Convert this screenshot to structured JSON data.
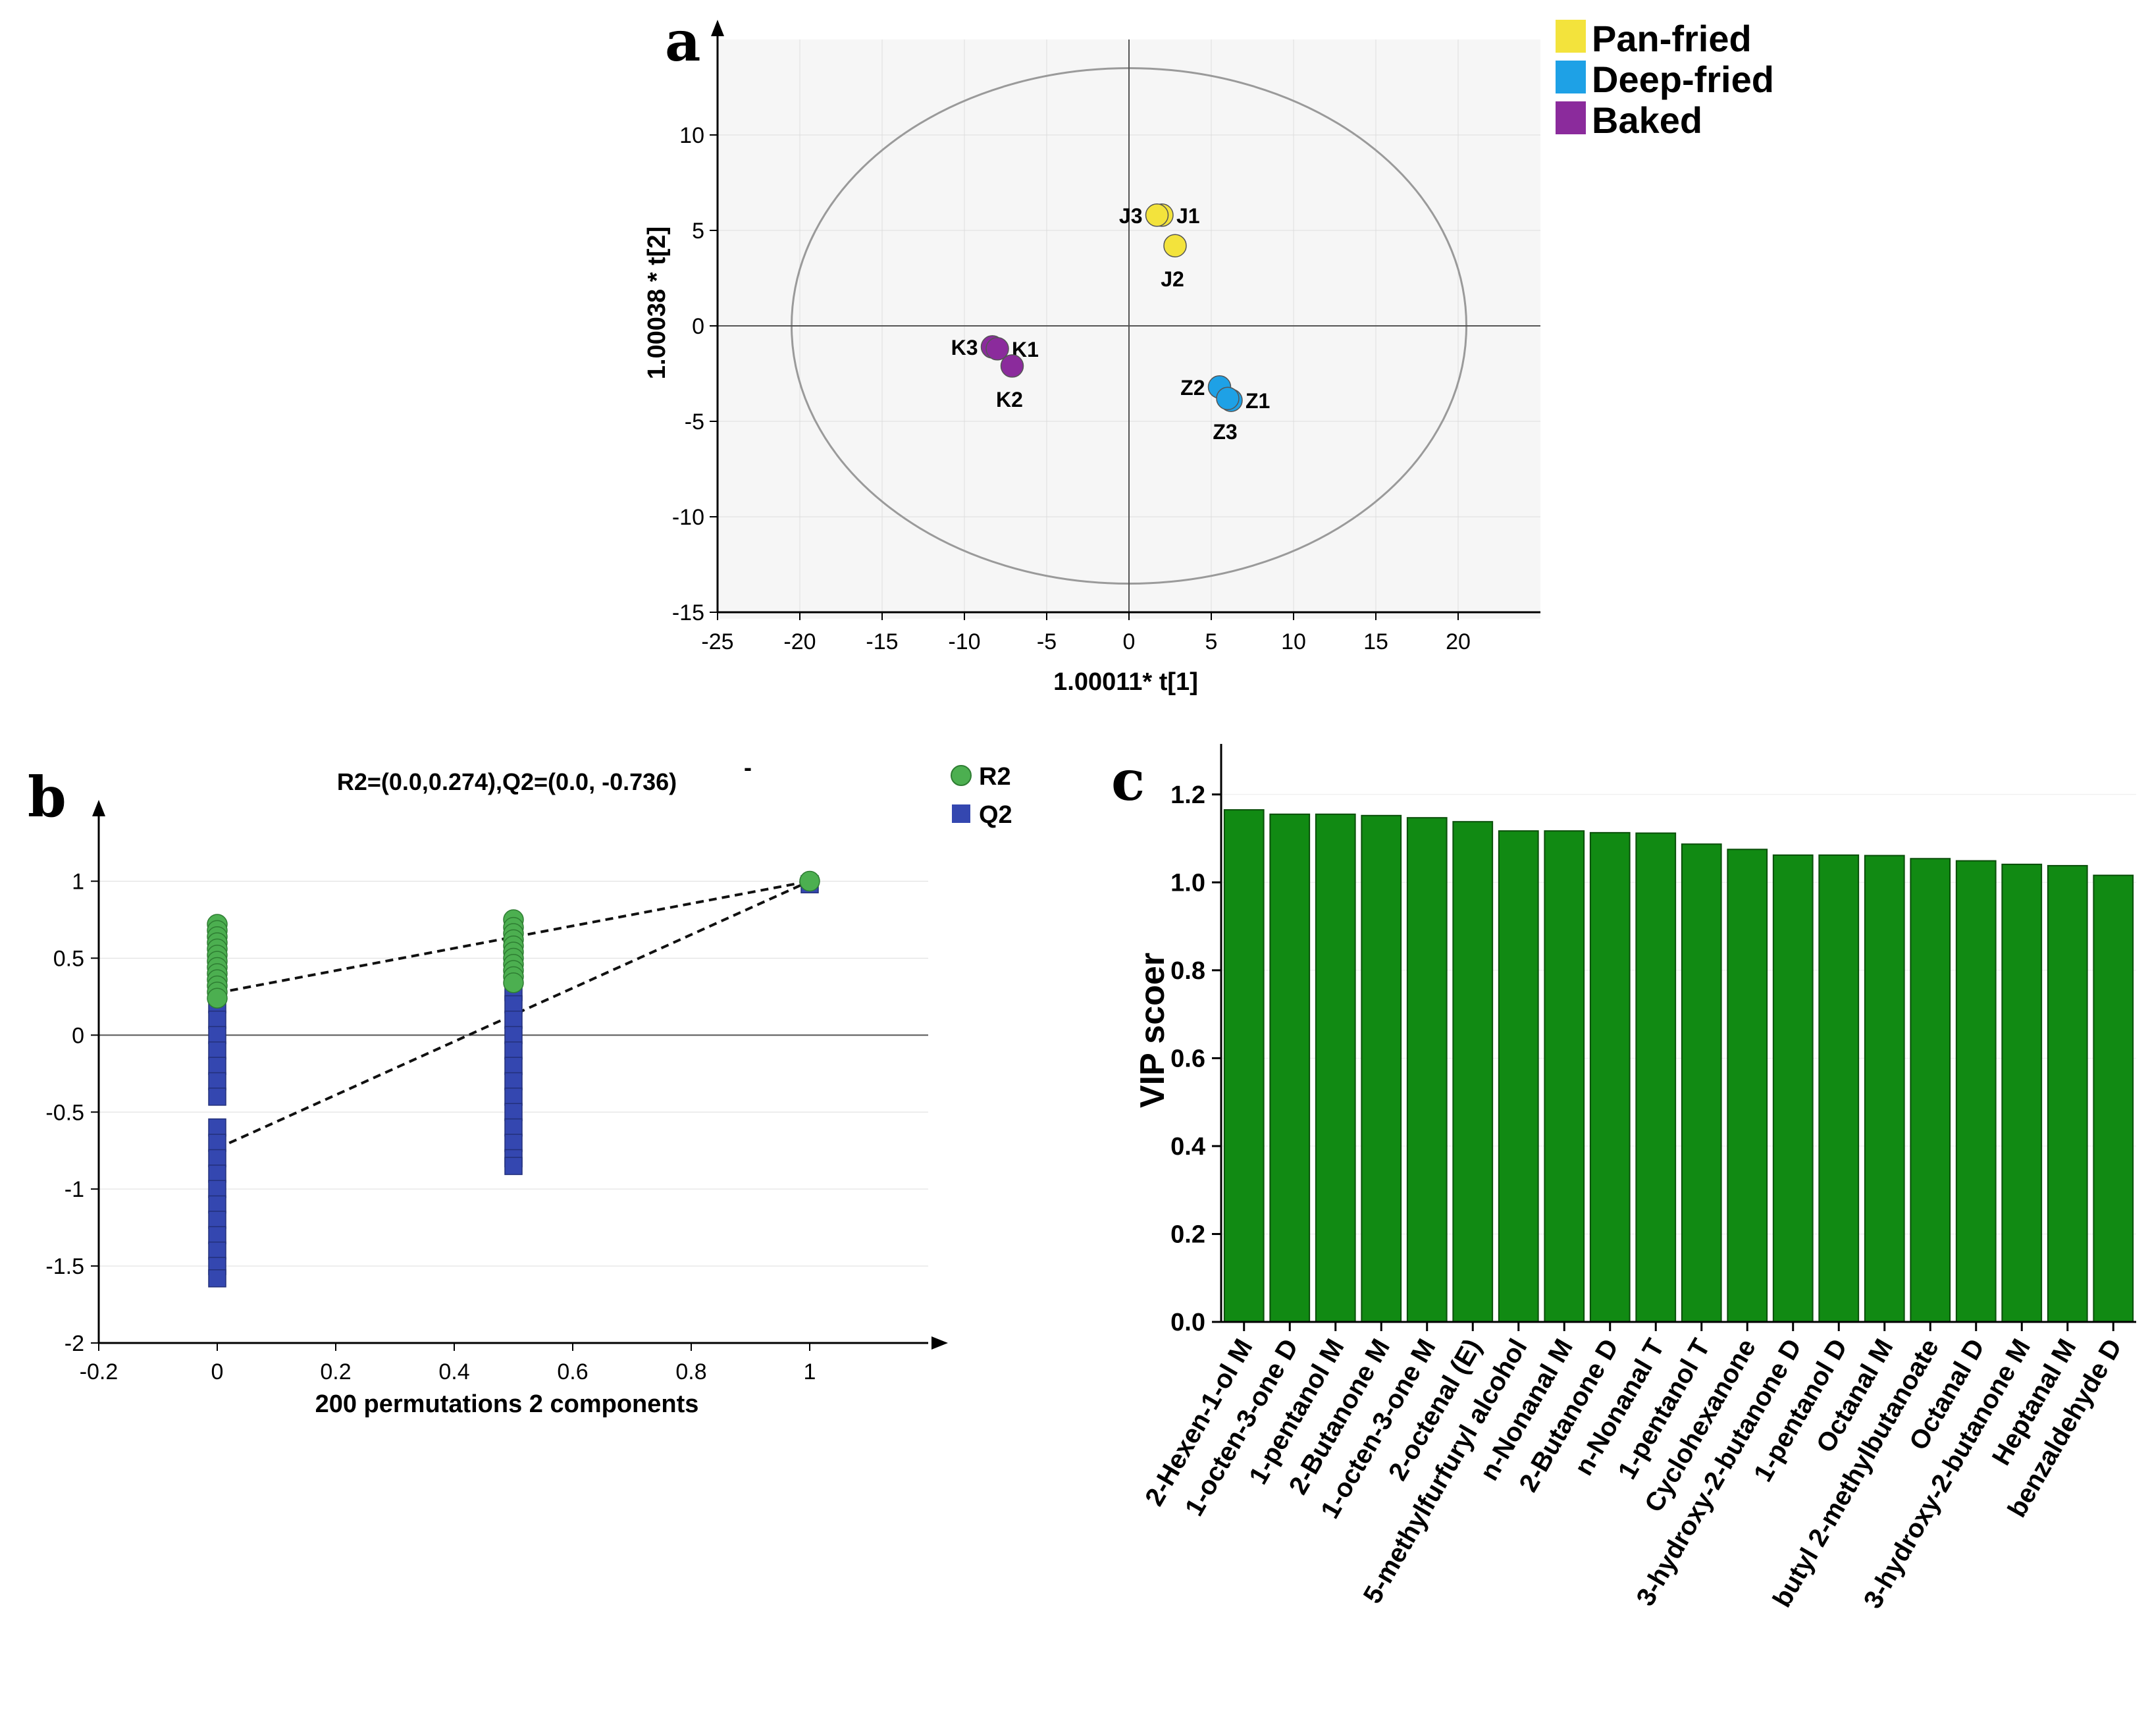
{
  "colors": {
    "pan_fried": "#f3e33c",
    "deep_fried": "#1ea1e6",
    "baked": "#8b2b9c",
    "r2": "#4caf50",
    "q2": "#3447b0",
    "bar": "#118a13",
    "bar_edge": "#0a4f0a",
    "grid": "#dddddd",
    "pan_label": "#c79a18",
    "deep_label": "#1f7fb8",
    "baked_label": "#7a2a8e"
  },
  "chart_data": [
    {
      "id": "a",
      "type": "scatter",
      "panel_label": "a",
      "title": "",
      "xlabel": "1.00011* t[1]",
      "ylabel": "1.00038 * t[2]",
      "xlim": [
        -25,
        25
      ],
      "ylim": [
        -15,
        15
      ],
      "xticks": [
        -25,
        -20,
        -15,
        -10,
        -5,
        0,
        5,
        10,
        15,
        20
      ],
      "yticks": [
        -15,
        -10,
        -5,
        0,
        5,
        10
      ],
      "ellipse": {
        "rx": 20.5,
        "ry": 13.5
      },
      "legend": [
        {
          "label": "Pan-fried",
          "color_key": "pan_fried"
        },
        {
          "label": "Deep-fried",
          "color_key": "deep_fried"
        },
        {
          "label": "Baked",
          "color_key": "baked"
        }
      ],
      "legend_position": "top-right",
      "series": [
        {
          "name": "Pan-fried",
          "color_key": "pan_fried",
          "label_color_key": "pan_label",
          "points": [
            {
              "label": "J1",
              "x": 2.0,
              "y": 5.8,
              "label_side": "right"
            },
            {
              "label": "J3",
              "x": 1.7,
              "y": 5.8,
              "label_side": "left"
            },
            {
              "label": "J2",
              "x": 2.8,
              "y": 4.2,
              "label_side": "below"
            }
          ]
        },
        {
          "name": "Deep-fried",
          "color_key": "deep_fried",
          "label_color_key": "deep_label",
          "points": [
            {
              "label": "Z2",
              "x": 5.5,
              "y": -3.2,
              "label_side": "left"
            },
            {
              "label": "Z1",
              "x": 6.2,
              "y": -3.9,
              "label_side": "right"
            },
            {
              "label": "Z3",
              "x": 6.0,
              "y": -3.8,
              "label_side": "below"
            }
          ]
        },
        {
          "name": "Baked",
          "color_key": "baked",
          "label_color_key": "baked_label",
          "points": [
            {
              "label": "K3",
              "x": -8.3,
              "y": -1.1,
              "label_side": "left"
            },
            {
              "label": "K1",
              "x": -8.0,
              "y": -1.2,
              "label_side": "right"
            },
            {
              "label": "K2",
              "x": -7.1,
              "y": -2.1,
              "label_side": "below"
            }
          ]
        }
      ]
    },
    {
      "id": "b",
      "type": "scatter",
      "panel_label": "b",
      "title": "R2=(0.0,0.274),Q2=(0.0,  -0.736)",
      "xlabel": "200 permutations 2  components",
      "ylabel": "",
      "xlim": [
        -0.2,
        1.2
      ],
      "ylim": [
        -2,
        1.4
      ],
      "xticks": [
        -0.2,
        0,
        0.2,
        0.4,
        0.6,
        0.8,
        1
      ],
      "yticks": [
        -2,
        -1.5,
        -1,
        -0.5,
        0,
        0.5,
        1
      ],
      "legend": [
        {
          "label": "R2",
          "color_key": "r2",
          "marker": "circle"
        },
        {
          "label": "Q2",
          "color_key": "q2",
          "marker": "square"
        }
      ],
      "legend_position": "top-right",
      "series": [
        {
          "name": "R2",
          "marker": "circle",
          "color_key": "r2",
          "points": [
            [
              0,
              0.72
            ],
            [
              0,
              0.68
            ],
            [
              0,
              0.64
            ],
            [
              0,
              0.6
            ],
            [
              0,
              0.56
            ],
            [
              0,
              0.52
            ],
            [
              0,
              0.48
            ],
            [
              0,
              0.44
            ],
            [
              0,
              0.4
            ],
            [
              0,
              0.36
            ],
            [
              0,
              0.32
            ],
            [
              0,
              0.28
            ],
            [
              0,
              0.24
            ],
            [
              0.5,
              0.75
            ],
            [
              0.5,
              0.7
            ],
            [
              0.5,
              0.66
            ],
            [
              0.5,
              0.62
            ],
            [
              0.5,
              0.58
            ],
            [
              0.5,
              0.54
            ],
            [
              0.5,
              0.5
            ],
            [
              0.5,
              0.46
            ],
            [
              0.5,
              0.42
            ],
            [
              0.5,
              0.38
            ],
            [
              0.5,
              0.34
            ],
            [
              1,
              1.0
            ]
          ]
        },
        {
          "name": "Q2",
          "marker": "square",
          "color_key": "q2",
          "points": [
            [
              0,
              0.28
            ],
            [
              0,
              0.2
            ],
            [
              0,
              0.1
            ],
            [
              0,
              0.0
            ],
            [
              0,
              -0.1
            ],
            [
              0,
              -0.2
            ],
            [
              0,
              -0.3
            ],
            [
              0,
              -0.4
            ],
            [
              0,
              -0.6
            ],
            [
              0,
              -0.7
            ],
            [
              0,
              -0.8
            ],
            [
              0,
              -0.9
            ],
            [
              0,
              -1.0
            ],
            [
              0,
              -1.1
            ],
            [
              0,
              -1.2
            ],
            [
              0,
              -1.3
            ],
            [
              0,
              -1.4
            ],
            [
              0,
              -1.5
            ],
            [
              0,
              -1.58
            ],
            [
              0.5,
              0.28
            ],
            [
              0.5,
              0.2
            ],
            [
              0.5,
              0.1
            ],
            [
              0.5,
              0.0
            ],
            [
              0.5,
              -0.1
            ],
            [
              0.5,
              -0.2
            ],
            [
              0.5,
              -0.3
            ],
            [
              0.5,
              -0.4
            ],
            [
              0.5,
              -0.5
            ],
            [
              0.5,
              -0.6
            ],
            [
              0.5,
              -0.7
            ],
            [
              0.5,
              -0.8
            ],
            [
              0.5,
              -0.85
            ],
            [
              1,
              0.98
            ]
          ]
        }
      ],
      "regression_lines": [
        {
          "name": "R2",
          "from": [
            0,
            0.274
          ],
          "to": [
            1,
            1.0
          ]
        },
        {
          "name": "Q2",
          "from": [
            0,
            -0.736
          ],
          "to": [
            1,
            1.0
          ]
        }
      ]
    },
    {
      "id": "c",
      "type": "bar",
      "panel_label": "c",
      "title": "",
      "xlabel": "",
      "ylabel": "VIP scoer",
      "ylim": [
        0,
        1.3
      ],
      "yticks": [
        0.0,
        0.2,
        0.4,
        0.6,
        0.8,
        1.0,
        1.2
      ],
      "ytick_labels": [
        "0.0",
        "0.2",
        "0.4",
        "0.6",
        "0.8",
        "1.0",
        "1.2"
      ],
      "categories": [
        "2-Hexen-1-ol M",
        "1-octen-3-one D",
        "1-pentanol M",
        "2-Butanone M",
        "1-octen-3-one M",
        "2-octenal (E)",
        "5-methylfurfuryl alcohol",
        "n-Nonanal M",
        "2-Butanone D",
        "n-Nonanal T",
        "1-pentanol T",
        "Cyclohexanone",
        "3-hydroxy-2-butanone D",
        "1-pentanol D",
        "Octanal M",
        "butyl 2-methylbutanoate",
        "Octanal D",
        "3-hydroxy-2-butanone M",
        "Heptanal M",
        "benzaldehyde D"
      ],
      "values": [
        1.165,
        1.155,
        1.155,
        1.152,
        1.147,
        1.138,
        1.117,
        1.117,
        1.113,
        1.112,
        1.087,
        1.075,
        1.062,
        1.062,
        1.061,
        1.054,
        1.049,
        1.041,
        1.038,
        1.016
      ]
    }
  ]
}
